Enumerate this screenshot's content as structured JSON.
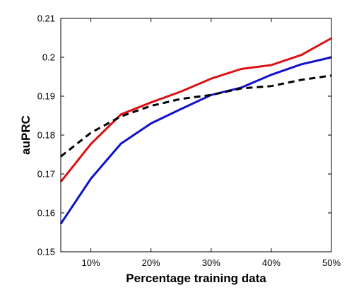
{
  "chart_data": {
    "type": "line",
    "xlabel": "Percentage training data",
    "ylabel": "auPRC",
    "xlim": [
      5,
      50
    ],
    "ylim": [
      0.15,
      0.21
    ],
    "x_ticks": [
      10,
      20,
      30,
      40,
      50
    ],
    "x_tick_labels": [
      "10%",
      "20%",
      "30%",
      "40%",
      "50%"
    ],
    "y_ticks": [
      0.15,
      0.16,
      0.17,
      0.18,
      0.19,
      0.2,
      0.21
    ],
    "y_tick_labels": [
      "0.15",
      "0.16",
      "0.17",
      "0.18",
      "0.19",
      "0.2",
      "0.21"
    ],
    "grid": false,
    "x": [
      5,
      10,
      15,
      20,
      25,
      30,
      35,
      40,
      45,
      50
    ],
    "series": [
      {
        "color": "#dd1111",
        "style": "solid",
        "values": [
          0.168,
          0.1777,
          0.1853,
          0.1884,
          0.1912,
          0.1945,
          0.197,
          0.198,
          0.2006,
          0.2049
        ]
      },
      {
        "color": "#1111cc",
        "style": "solid",
        "values": [
          0.1572,
          0.1688,
          0.1778,
          0.183,
          0.1867,
          0.1903,
          0.1922,
          0.1955,
          0.1982,
          0.2
        ]
      },
      {
        "color": "#000000",
        "style": "dashed",
        "values": [
          0.1745,
          0.1806,
          0.1848,
          0.1875,
          0.1893,
          0.1903,
          0.192,
          0.1926,
          0.1942,
          0.1953
        ]
      }
    ]
  }
}
